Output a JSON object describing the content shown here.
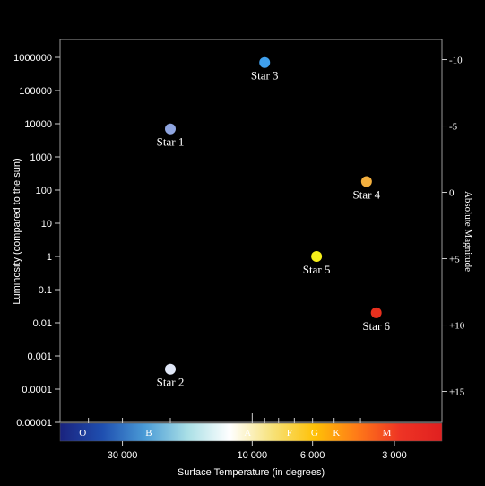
{
  "chart_data": {
    "type": "scatter",
    "title": "",
    "xlabel": "Surface Temperature (in degrees)",
    "ylabel": "Luminosity (compared to the sun)",
    "y2label": "Absolute Magnitude",
    "y_scale": "log",
    "x_scale": "log",
    "x_reversed": true,
    "xlim": [
      50000,
      2500
    ],
    "ylim": [
      1e-05,
      1500000
    ],
    "y_ticks": [
      {
        "value": 1000000,
        "label": "1000000"
      },
      {
        "value": 100000,
        "label": "100000"
      },
      {
        "value": 10000,
        "label": "10000"
      },
      {
        "value": 1000,
        "label": "1000"
      },
      {
        "value": 100,
        "label": "100"
      },
      {
        "value": 10,
        "label": "10"
      },
      {
        "value": 1,
        "label": "1"
      },
      {
        "value": 0.1,
        "label": "0.1"
      },
      {
        "value": 0.01,
        "label": "0.01"
      },
      {
        "value": 0.001,
        "label": "0.001"
      },
      {
        "value": 0.0001,
        "label": "0.0001"
      },
      {
        "value": 1e-05,
        "label": "0.00001"
      }
    ],
    "y2_ticks": [
      {
        "magnitude": -10,
        "label": "-10"
      },
      {
        "magnitude": -5,
        "label": "-5"
      },
      {
        "magnitude": 0,
        "label": "0"
      },
      {
        "magnitude": 5,
        "label": "+5"
      },
      {
        "magnitude": 10,
        "label": "+10"
      },
      {
        "magnitude": 15,
        "label": "+15"
      }
    ],
    "x_ticks": [
      {
        "value": 30000,
        "label": "30 000"
      },
      {
        "value": 10000,
        "label": "10 000"
      },
      {
        "value": 6000,
        "label": "6 000"
      },
      {
        "value": 3000,
        "label": "3 000"
      }
    ],
    "spectral_classes": [
      {
        "label": "O",
        "temp": 42000
      },
      {
        "label": "B",
        "temp": 24000
      },
      {
        "label": "A",
        "temp": 10400
      },
      {
        "label": "F",
        "temp": 7300
      },
      {
        "label": "G",
        "temp": 5900
      },
      {
        "label": "K",
        "temp": 4900
      },
      {
        "label": "M",
        "temp": 3200
      }
    ],
    "spectral_ticks": [
      40000,
      30000,
      20000,
      10000,
      9000,
      8000,
      7000,
      6000,
      5000,
      4000
    ],
    "gradient_colors": [
      "#1a237e",
      "#1f4fb0",
      "#4a9bd6",
      "#a9dfe6",
      "#ffffff",
      "#f7e27a",
      "#ffc107",
      "#ff7a18",
      "#ee3424",
      "#e02020"
    ],
    "series": [
      {
        "points": [
          {
            "label": "Star 1",
            "temp": 20000,
            "luminosity": 7000,
            "color": "#8fa5e0"
          },
          {
            "label": "Star 2",
            "temp": 20000,
            "luminosity": 0.0004,
            "color": "#dfe6f6"
          },
          {
            "label": "Star 3",
            "temp": 9000,
            "luminosity": 700000,
            "color": "#3fa0ee"
          },
          {
            "label": "Star 4",
            "temp": 3800,
            "luminosity": 180,
            "color": "#f4b03e"
          },
          {
            "label": "Star 5",
            "temp": 5800,
            "luminosity": 1.0,
            "color": "#f6ef1a"
          },
          {
            "label": "Star 6",
            "temp": 3500,
            "luminosity": 0.02,
            "color": "#e8301e"
          }
        ]
      }
    ]
  }
}
